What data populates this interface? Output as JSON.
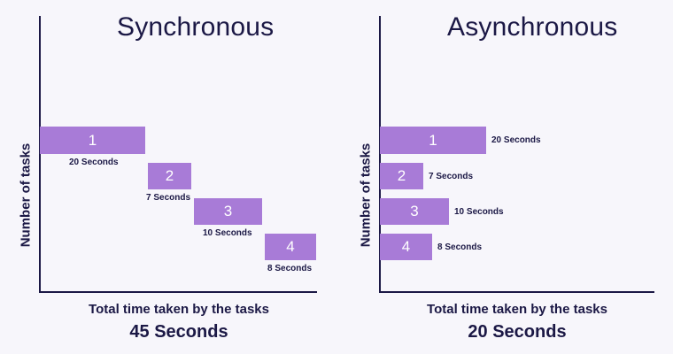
{
  "synchronous": {
    "title": "Synchronous",
    "ylabel": "Number of tasks",
    "caption": "Total time taken by the tasks",
    "total": "45 Seconds",
    "tasks": [
      {
        "label": "1",
        "duration": "20 Seconds",
        "seconds": 20
      },
      {
        "label": "2",
        "duration": "7 Seconds",
        "seconds": 7
      },
      {
        "label": "3",
        "duration": "10 Seconds",
        "seconds": 10
      },
      {
        "label": "4",
        "duration": "8 Seconds",
        "seconds": 8
      }
    ]
  },
  "asynchronous": {
    "title": "Asynchronous",
    "ylabel": "Number of tasks",
    "caption": "Total time taken by the tasks",
    "total": "20 Seconds",
    "tasks": [
      {
        "label": "1",
        "duration": "20 Seconds",
        "seconds": 20
      },
      {
        "label": "2",
        "duration": "7 Seconds",
        "seconds": 7
      },
      {
        "label": "3",
        "duration": "10 Seconds",
        "seconds": 10
      },
      {
        "label": "4",
        "duration": "8 Seconds",
        "seconds": 8
      }
    ]
  },
  "colors": {
    "bar": "#a87bd7",
    "text": "#1b1845",
    "background": "#f7f6fb"
  }
}
